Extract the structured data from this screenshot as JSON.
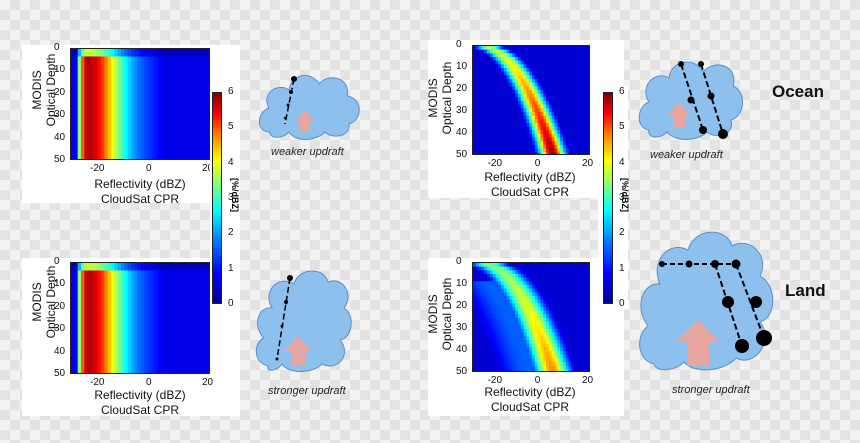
{
  "chart_data": [
    {
      "type": "heatmap",
      "title": "",
      "xlabel": "Reflectivity (dBZ)",
      "xlabel2": "CloudSat CPR",
      "ylabel": "Optical Depth",
      "ylabel2": "MODIS",
      "xlim": [
        -30,
        20
      ],
      "ylim": [
        50,
        0
      ],
      "xticks": [
        "-20",
        "0",
        "20"
      ],
      "yticks": [
        "0",
        "10",
        "20",
        "30",
        "40",
        "50"
      ],
      "caption": "weaker updraft",
      "regime": "vertical",
      "peak_x": -24
    },
    {
      "type": "heatmap",
      "title": "",
      "xlabel": "Reflectivity (dBZ)",
      "xlabel2": "CloudSat CPR",
      "ylabel": "Optical Depth",
      "ylabel2": "MODIS",
      "xlim": [
        -30,
        20
      ],
      "ylim": [
        50,
        0
      ],
      "xticks": [
        "-20",
        "0",
        "20"
      ],
      "yticks": [
        "0",
        "10",
        "20",
        "30",
        "40",
        "50"
      ],
      "caption": "stronger updraft",
      "regime": "vertical",
      "peak_x": -24
    },
    {
      "type": "heatmap",
      "title": "",
      "xlabel": "Reflectivity (dBZ)",
      "xlabel2": "CloudSat CPR",
      "ylabel": "Optical Depth",
      "ylabel2": "MODIS",
      "xlim": [
        -30,
        20
      ],
      "ylim": [
        50,
        0
      ],
      "xticks": [
        "-20",
        "0",
        "20"
      ],
      "yticks": [
        "0",
        "10",
        "20",
        "30",
        "40",
        "50"
      ],
      "caption": "weaker updraft",
      "regime": "curved",
      "region": "Ocean"
    },
    {
      "type": "heatmap",
      "title": "",
      "xlabel": "Reflectivity (dBZ)",
      "xlabel2": "CloudSat CPR",
      "ylabel": "Optical Depth",
      "ylabel2": "MODIS",
      "xlim": [
        -30,
        20
      ],
      "ylim": [
        50,
        0
      ],
      "xticks": [
        "-20",
        "0",
        "20"
      ],
      "yticks": [
        "0",
        "10",
        "20",
        "30",
        "40",
        "50"
      ],
      "caption": "stronger updraft",
      "regime": "curved-weak",
      "region": "Land"
    }
  ],
  "colorbar": {
    "ticks": [
      "0",
      "1",
      "2",
      "3",
      "4",
      "5",
      "6"
    ],
    "unit": "[%/dBZ]",
    "range": [
      0,
      6
    ]
  },
  "colors": {
    "cloud_fill": "#8ec0ee",
    "cloud_edge": "#5b8fc7",
    "arrow": "#e8a6a0",
    "dots": "#000000"
  }
}
